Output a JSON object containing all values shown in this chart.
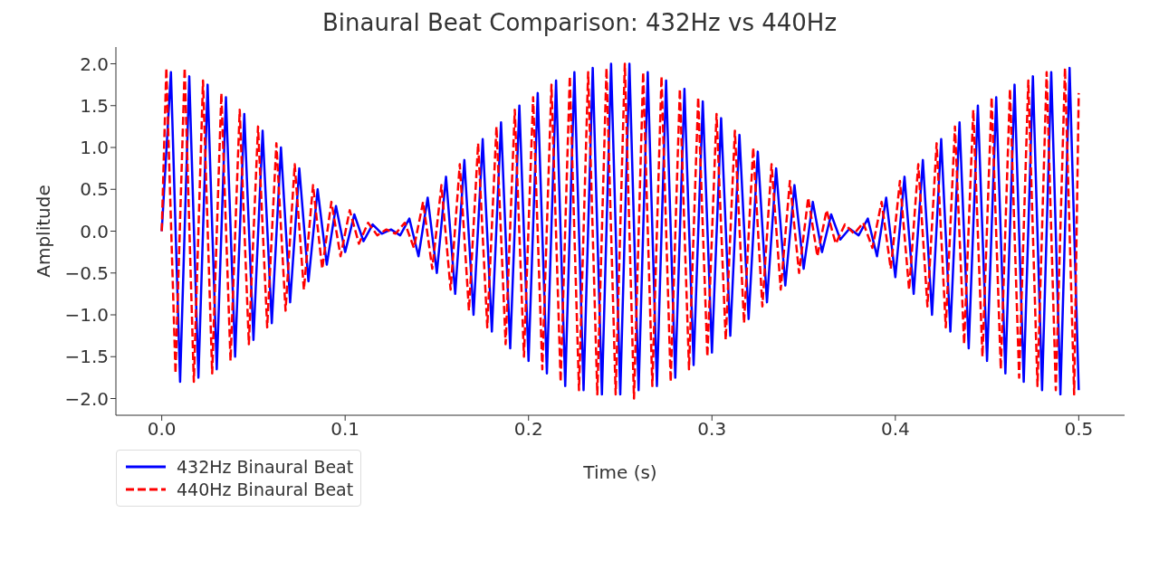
{
  "chart_data": {
    "type": "line",
    "title": "Binaural Beat Comparison: 432Hz vs 440Hz",
    "xlabel": "Time (s)",
    "ylabel": "Amplitude",
    "xlim": [
      -0.025,
      0.525
    ],
    "xticks": [
      {
        "value": 0,
        "label": "0.0"
      },
      0.1,
      0.2,
      0.3,
      0.4,
      0.5
    ],
    "ylim": [
      -2.2,
      2.2
    ],
    "yticks": [
      {
        "value": -2,
        "label": "−2.0"
      },
      {
        "value": -1.5,
        "label": "−1.5"
      },
      {
        "value": -1,
        "label": "−1.0"
      },
      {
        "value": -0.5,
        "label": "−0.5"
      },
      {
        "value": 0,
        "label": "0.0"
      },
      0.5,
      {
        "value": 1,
        "label": "1.0"
      },
      1.5,
      {
        "value": 2,
        "label": "2.0"
      }
    ],
    "grid": false,
    "legend": "bottom left",
    "series": [
      {
        "name": "432Hz Binaural Beat",
        "color": "#0000ff",
        "line_style": "solid",
        "x": [
          0,
          0.005,
          0.01,
          0.015,
          0.02,
          0.025,
          0.03,
          0.035,
          0.04,
          0.045,
          0.05,
          0.055,
          0.06,
          0.065,
          0.07,
          0.075,
          0.08,
          0.085,
          0.09,
          0.095,
          0.1,
          0.105,
          0.11,
          0.115,
          0.12,
          0.125,
          0.13,
          0.135,
          0.14,
          0.145,
          0.15,
          0.155,
          0.16,
          0.165,
          0.17,
          0.175,
          0.18,
          0.185,
          0.19,
          0.195,
          0.2,
          0.205,
          0.21,
          0.215,
          0.22,
          0.225,
          0.23,
          0.235,
          0.24,
          0.245,
          0.25,
          0.255,
          0.26,
          0.265,
          0.27,
          0.275,
          0.28,
          0.285,
          0.29,
          0.295,
          0.3,
          0.305,
          0.31,
          0.315,
          0.32,
          0.325,
          0.33,
          0.335,
          0.34,
          0.345,
          0.35,
          0.355,
          0.36,
          0.365,
          0.37,
          0.375,
          0.38,
          0.385,
          0.39,
          0.395,
          0.4,
          0.405,
          0.41,
          0.415,
          0.42,
          0.425,
          0.43,
          0.435,
          0.44,
          0.445,
          0.45,
          0.455,
          0.46,
          0.465,
          0.47,
          0.475,
          0.48,
          0.485,
          0.49,
          0.495,
          0.5
        ],
        "values": [
          0,
          1.9,
          -1.8,
          1.85,
          -1.75,
          1.75,
          -1.65,
          1.6,
          -1.5,
          1.4,
          -1.3,
          1.2,
          -1.1,
          1.0,
          -0.85,
          0.75,
          -0.6,
          0.5,
          -0.4,
          0.3,
          -0.25,
          0.2,
          -0.12,
          0.08,
          -0.03,
          0.02,
          -0.05,
          0.15,
          -0.3,
          0.4,
          -0.5,
          0.65,
          -0.75,
          0.85,
          -1.0,
          1.1,
          -1.2,
          1.3,
          -1.4,
          1.5,
          -1.55,
          1.65,
          -1.7,
          1.8,
          -1.85,
          1.9,
          -1.9,
          1.95,
          -1.95,
          2.0,
          -1.95,
          2.0,
          -1.9,
          1.9,
          -1.85,
          1.8,
          -1.75,
          1.7,
          -1.6,
          1.55,
          -1.45,
          1.35,
          -1.25,
          1.15,
          -1.05,
          0.95,
          -0.85,
          0.75,
          -0.65,
          0.55,
          -0.45,
          0.35,
          -0.25,
          0.2,
          -0.1,
          0.03,
          -0.05,
          0.15,
          -0.3,
          0.4,
          -0.55,
          0.65,
          -0.75,
          0.85,
          -1.0,
          1.1,
          -1.2,
          1.3,
          -1.4,
          1.5,
          -1.55,
          1.6,
          -1.7,
          1.75,
          -1.8,
          1.85,
          -1.9,
          1.9,
          -1.95,
          1.95,
          -1.9
        ]
      },
      {
        "name": "440Hz Binaural Beat",
        "color": "#ff0000",
        "line_style": "dashed",
        "x": [
          0,
          0.0025,
          0.0075,
          0.0125,
          0.0175,
          0.0225,
          0.0275,
          0.0325,
          0.0375,
          0.0425,
          0.0475,
          0.0525,
          0.0575,
          0.0625,
          0.0675,
          0.0725,
          0.0775,
          0.0825,
          0.0875,
          0.0925,
          0.0975,
          0.1025,
          0.1075,
          0.1125,
          0.1175,
          0.1225,
          0.1275,
          0.1325,
          0.1375,
          0.1425,
          0.1475,
          0.1525,
          0.1575,
          0.1625,
          0.1675,
          0.1725,
          0.1775,
          0.1825,
          0.1875,
          0.1925,
          0.1975,
          0.2025,
          0.2075,
          0.2125,
          0.2175,
          0.2225,
          0.2275,
          0.2325,
          0.2375,
          0.2425,
          0.2475,
          0.2525,
          0.2575,
          0.2625,
          0.2675,
          0.2725,
          0.2775,
          0.2825,
          0.2875,
          0.2925,
          0.2975,
          0.3025,
          0.3075,
          0.3125,
          0.3175,
          0.3225,
          0.3275,
          0.3325,
          0.3375,
          0.3425,
          0.3475,
          0.3525,
          0.3575,
          0.3625,
          0.3675,
          0.3725,
          0.3775,
          0.3825,
          0.3875,
          0.3925,
          0.3975,
          0.4025,
          0.4075,
          0.4125,
          0.4175,
          0.4225,
          0.4275,
          0.4325,
          0.4375,
          0.4425,
          0.4475,
          0.4525,
          0.4575,
          0.4625,
          0.4675,
          0.4725,
          0.4775,
          0.4825,
          0.4875,
          0.4925,
          0.4975,
          0.5
        ],
        "values": [
          0,
          1.95,
          -1.7,
          1.95,
          -1.8,
          1.8,
          -1.7,
          1.65,
          -1.55,
          1.45,
          -1.35,
          1.25,
          -1.15,
          1.05,
          -0.95,
          0.8,
          -0.7,
          0.55,
          -0.45,
          0.35,
          -0.3,
          0.25,
          -0.15,
          0.1,
          -0.05,
          0.02,
          -0.03,
          0.1,
          -0.2,
          0.35,
          -0.45,
          0.55,
          -0.7,
          0.8,
          -0.95,
          1.05,
          -1.15,
          1.25,
          -1.35,
          1.45,
          -1.5,
          1.6,
          -1.65,
          1.75,
          -1.8,
          1.85,
          -1.9,
          1.9,
          -1.95,
          1.95,
          -1.95,
          2.0,
          -2.0,
          1.9,
          -1.85,
          1.85,
          -1.8,
          1.7,
          -1.65,
          1.6,
          -1.5,
          1.4,
          -1.3,
          1.2,
          -1.1,
          1.0,
          -0.9,
          0.8,
          -0.7,
          0.6,
          -0.5,
          0.4,
          -0.3,
          0.25,
          -0.15,
          0.08,
          -0.03,
          0.1,
          -0.2,
          0.35,
          -0.45,
          0.6,
          -0.7,
          0.8,
          -0.9,
          1.05,
          -1.15,
          1.25,
          -1.35,
          1.45,
          -1.5,
          1.6,
          -1.65,
          1.7,
          -1.75,
          1.8,
          -1.85,
          1.9,
          -1.9,
          1.95,
          -1.95,
          1.65
        ]
      }
    ]
  }
}
